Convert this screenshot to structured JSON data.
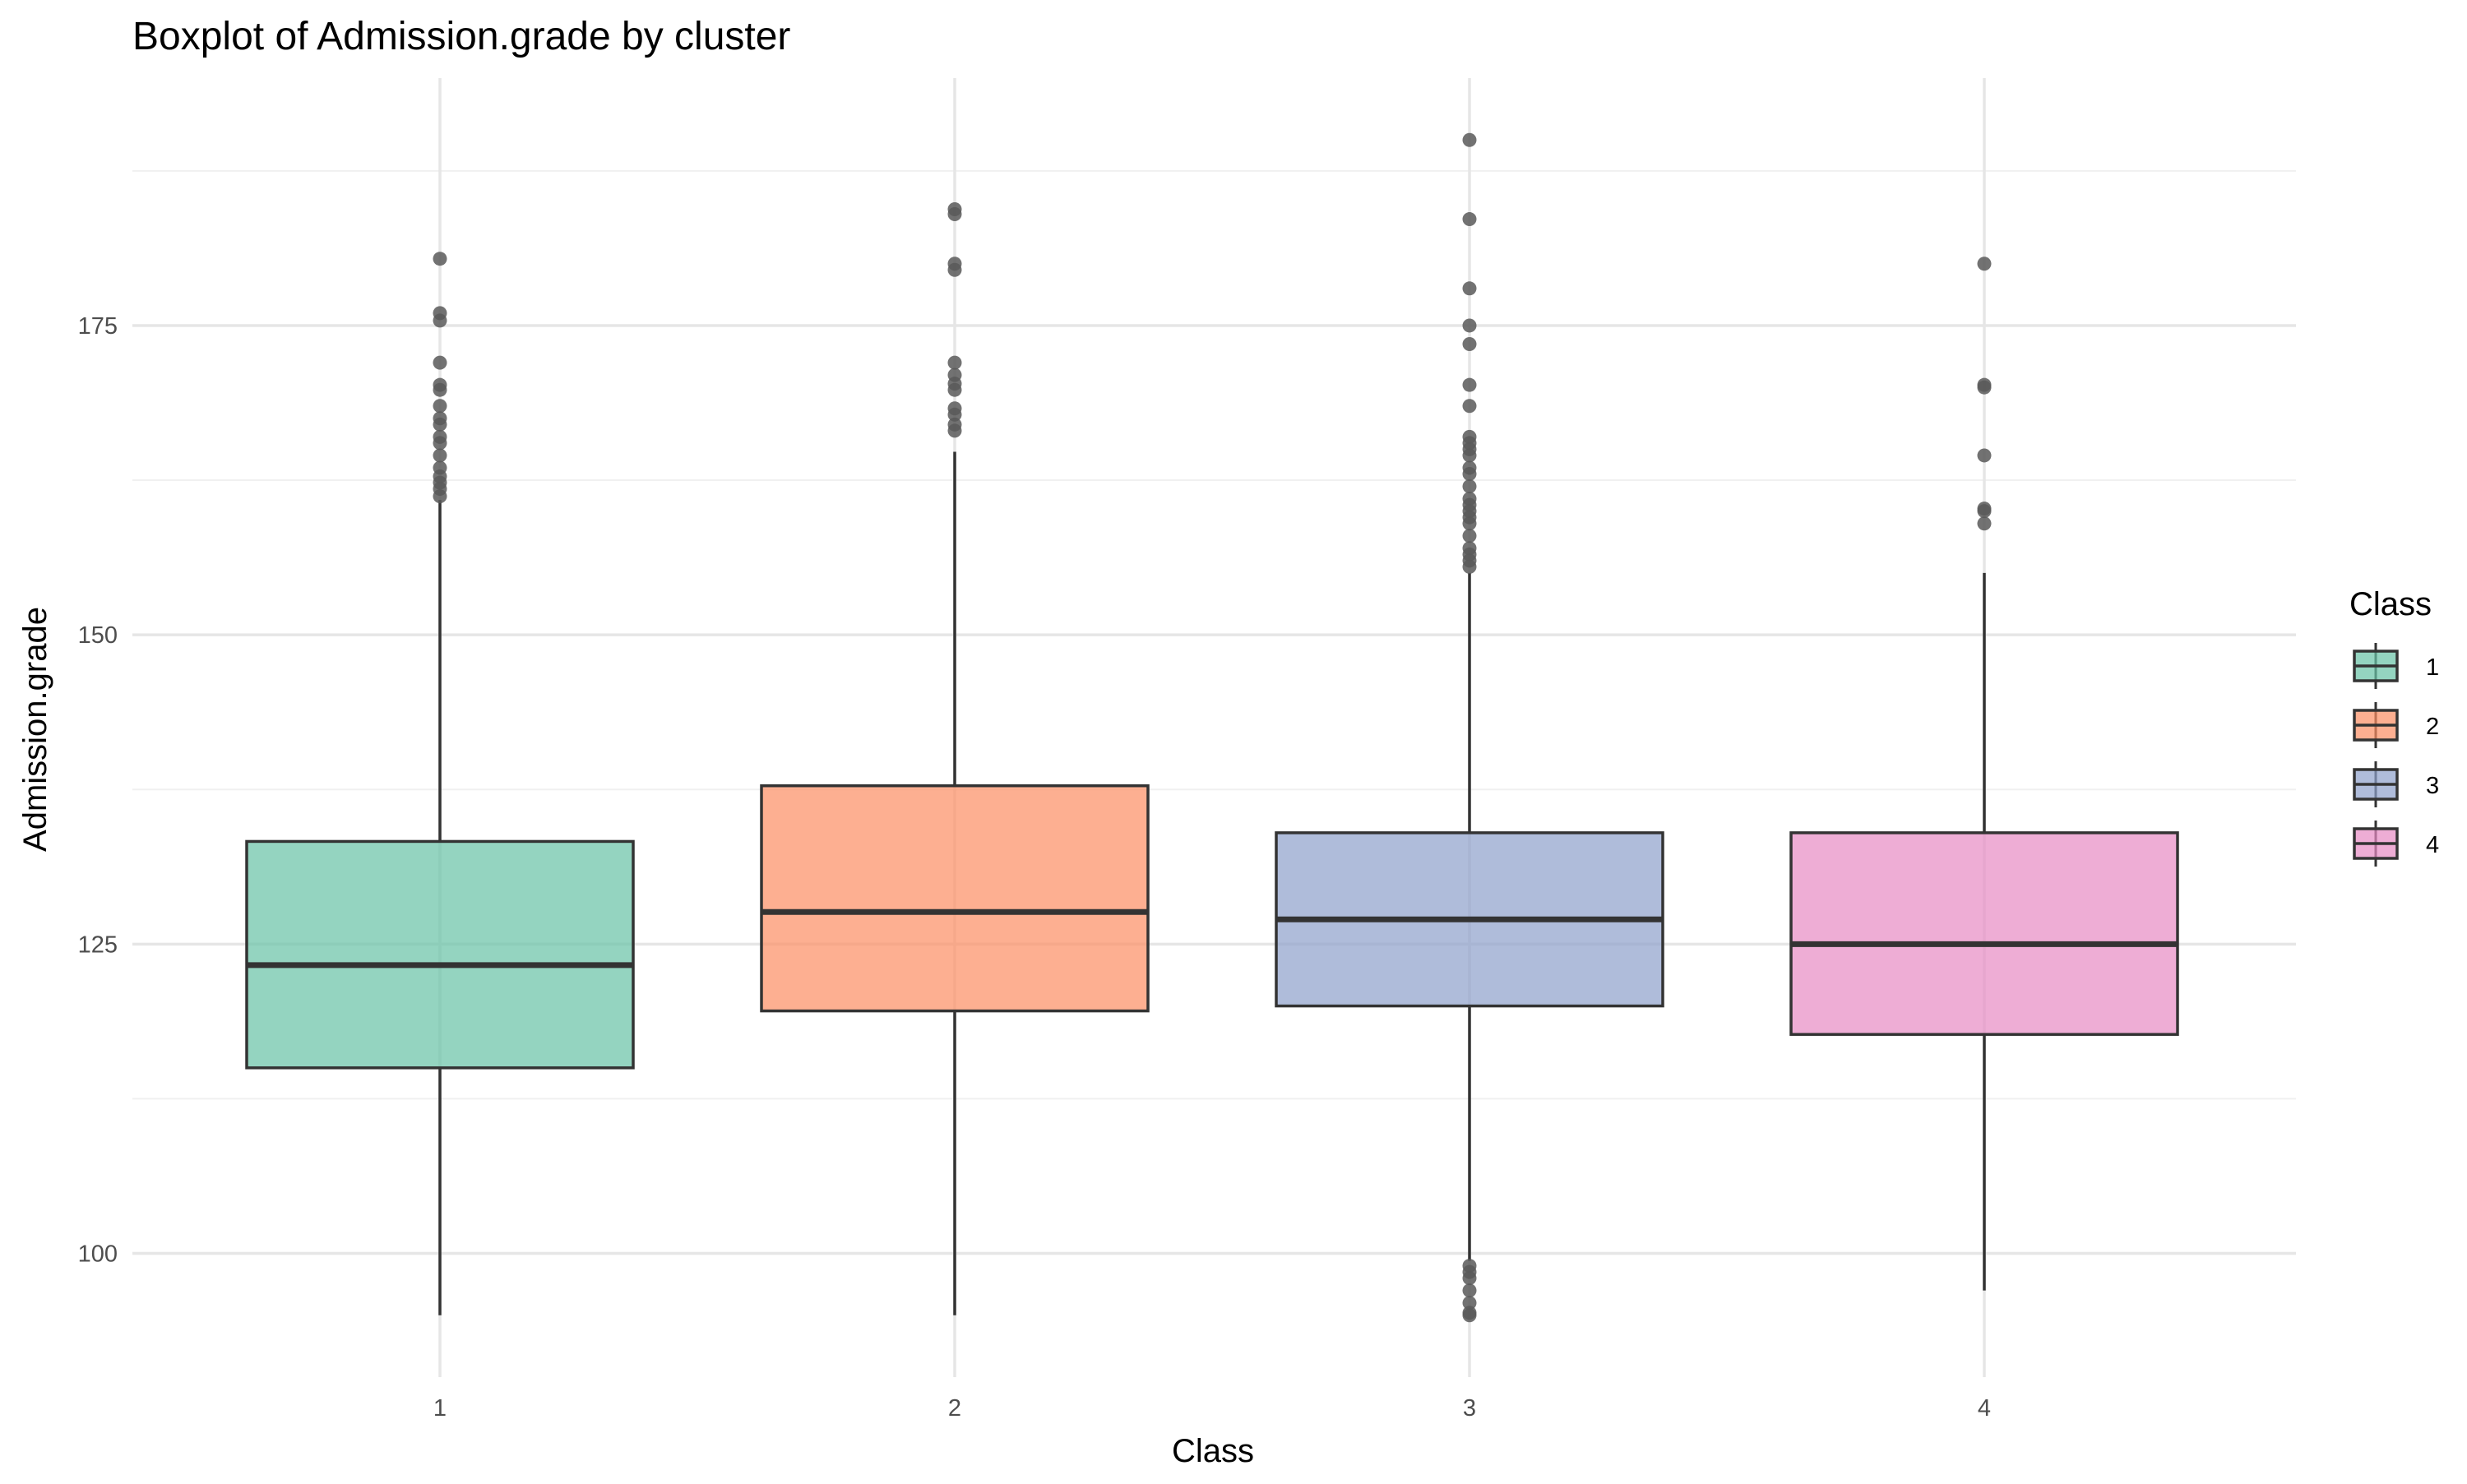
{
  "chart_data": {
    "type": "boxplot",
    "title": "Boxplot of  Admission.grade  by cluster",
    "xlabel": "Class",
    "ylabel": "Admission.grade",
    "categories": [
      "1",
      "2",
      "3",
      "4"
    ],
    "ylim": [
      90,
      195
    ],
    "y_ticks": [
      100,
      125,
      150,
      175
    ],
    "y_tick_labels": [
      "100",
      "125",
      "150",
      "175"
    ],
    "grid": true,
    "legend": {
      "title": "Class",
      "position": "right",
      "labels": [
        "1",
        "2",
        "3",
        "4"
      ]
    },
    "colors": [
      "#66c2a5",
      "#fc8d62",
      "#8da0cb",
      "#e78ac3"
    ],
    "box_stroke": "#333333",
    "outlier_color": "#595959",
    "series": [
      {
        "name": "1",
        "whisker_low": 95,
        "q1": 115,
        "median": 123.3,
        "q3": 133.3,
        "whisker_high": 160.9,
        "outliers": [
          180.4,
          176,
          175.4,
          172,
          170.2,
          169.8,
          168.5,
          167.5,
          167,
          166,
          165.5,
          164.5,
          163.5,
          162.8,
          162.3,
          161.8,
          161.2
        ]
      },
      {
        "name": "2",
        "whisker_low": 95,
        "q1": 119.6,
        "median": 127.6,
        "q3": 137.8,
        "whisker_high": 164.8,
        "outliers": [
          184.4,
          184,
          180,
          179.5,
          172,
          171,
          170.3,
          169.8,
          168.3,
          167.8,
          167,
          166.5
        ]
      },
      {
        "name": "3",
        "whisker_low": 99.4,
        "q1": 120,
        "median": 127,
        "q3": 134,
        "whisker_high": 155,
        "outliers": [
          190,
          183.6,
          178,
          175,
          173.5,
          170.2,
          168.5,
          166,
          165.5,
          165,
          164.5,
          163.5,
          163,
          162,
          161,
          160.5,
          160,
          159.5,
          159,
          158,
          157,
          156.5,
          156,
          155.5,
          99,
          98.5,
          98,
          97,
          96,
          95.2,
          95
        ]
      },
      {
        "name": "4",
        "whisker_low": 97,
        "q1": 117.7,
        "median": 125,
        "q3": 134,
        "whisker_high": 155,
        "outliers": [
          180,
          170.2,
          170,
          164.5,
          160.2,
          160,
          159
        ]
      }
    ]
  }
}
